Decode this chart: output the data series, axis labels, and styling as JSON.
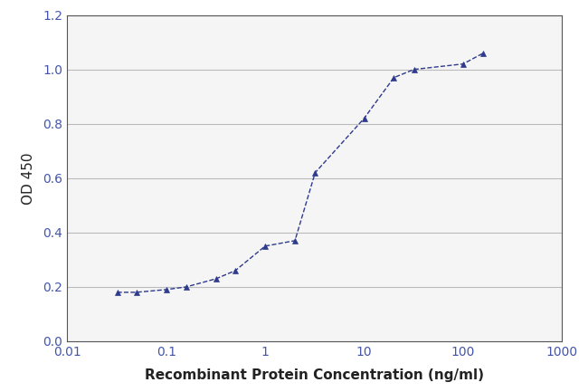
{
  "x": [
    0.032,
    0.05,
    0.1,
    0.16,
    0.32,
    0.5,
    1.0,
    2.0,
    3.2,
    10.0,
    20.0,
    32.0,
    100.0,
    160.0
  ],
  "y": [
    0.18,
    0.18,
    0.19,
    0.2,
    0.23,
    0.26,
    0.35,
    0.37,
    0.62,
    0.82,
    0.97,
    1.0,
    1.02,
    1.06
  ],
  "line_color": "#2E3A8C",
  "marker": "^",
  "marker_size": 4,
  "marker_color": "#2E3A8C",
  "line_width": 1.0,
  "line_style": "--",
  "xlabel": "Recombinant Protein Concentration (ng/ml)",
  "ylabel": "OD 450",
  "xlim": [
    0.01,
    1000
  ],
  "ylim": [
    0.0,
    1.2
  ],
  "yticks": [
    0.0,
    0.2,
    0.4,
    0.6,
    0.8,
    1.0,
    1.2
  ],
  "xtick_values": [
    0.01,
    0.1,
    1,
    10,
    100,
    1000
  ],
  "grid_color": "#bbbbbb",
  "grid_linewidth": 0.8,
  "background_color": "#ffffff",
  "plot_bg_color": "#f5f5f5",
  "xlabel_fontsize": 11,
  "ylabel_fontsize": 11,
  "tick_fontsize": 10,
  "tick_color": "#4455aa",
  "label_color": "#222222",
  "spine_color": "#555555"
}
